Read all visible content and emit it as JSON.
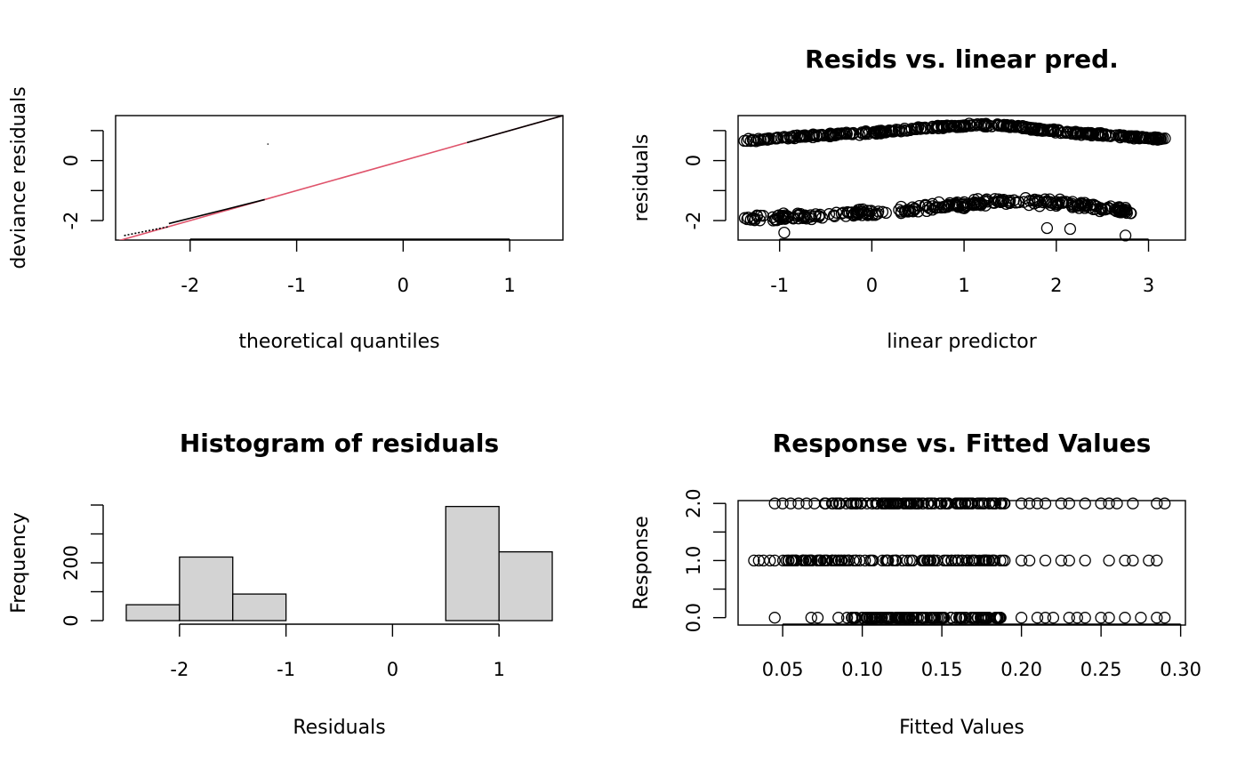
{
  "chart_data": [
    {
      "type": "scatter",
      "title": "",
      "xlabel": "theoretical quantiles",
      "ylabel": "deviance residuals",
      "xlim": [
        -2.7,
        1.5
      ],
      "ylim": [
        -2.65,
        1.5
      ],
      "x_ticks": [
        "-2",
        "-1",
        "0",
        "1"
      ],
      "x_tick_values": [
        -2,
        -1,
        0,
        1
      ],
      "y_ticks": [
        "-2",
        "0"
      ],
      "y_tick_values": [
        -2,
        0
      ],
      "y_minor_ticks": [
        -1,
        1
      ],
      "reference_line": {
        "intercept": 0,
        "slope": 1,
        "color": "#DF536B"
      },
      "points_color": "#000000",
      "segments": [
        {
          "x_from": -2.62,
          "x_to": -2.2,
          "y_from": -2.5,
          "y_to": -2.2
        },
        {
          "x_from": -2.2,
          "x_to": -1.3,
          "y_from": -2.1,
          "y_to": -1.3
        },
        {
          "x_from": 0.6,
          "x_to": 1.5,
          "y_from": 0.6,
          "y_to": 1.5
        }
      ],
      "outlier": {
        "x": -1.27,
        "y": 0.55
      }
    },
    {
      "type": "scatter",
      "title": "Resids vs. linear pred.",
      "xlabel": "linear predictor",
      "ylabel": "residuals",
      "xlim": [
        -1.45,
        3.4
      ],
      "ylim": [
        -2.65,
        1.5
      ],
      "x_ticks": [
        "-1",
        "0",
        "1",
        "2",
        "3"
      ],
      "x_tick_values": [
        -1,
        0,
        1,
        2,
        3
      ],
      "y_ticks": [
        "-2",
        "0"
      ],
      "y_tick_values": [
        -2,
        0
      ],
      "y_minor_ticks": [
        -1,
        1
      ],
      "upper_band": [
        [
          -1.4,
          0.68
        ],
        [
          -1.2,
          0.7
        ],
        [
          -1.0,
          0.76
        ],
        [
          -0.8,
          0.8
        ],
        [
          -0.5,
          0.85
        ],
        [
          -0.2,
          0.9
        ],
        [
          0.0,
          0.93
        ],
        [
          0.3,
          1.0
        ],
        [
          0.6,
          1.1
        ],
        [
          0.9,
          1.15
        ],
        [
          1.2,
          1.2
        ],
        [
          1.5,
          1.15
        ],
        [
          1.8,
          1.05
        ],
        [
          2.1,
          0.95
        ],
        [
          2.4,
          0.88
        ],
        [
          2.7,
          0.82
        ],
        [
          3.0,
          0.75
        ],
        [
          3.2,
          0.7
        ]
      ],
      "lower_band": [
        [
          -1.4,
          -1.95
        ],
        [
          -1.2,
          -1.93
        ],
        [
          -1.0,
          -1.9
        ],
        [
          -0.7,
          -1.87
        ],
        [
          -0.4,
          -1.82
        ],
        [
          -0.1,
          -1.76
        ],
        [
          0.2,
          -1.7
        ],
        [
          0.5,
          -1.62
        ],
        [
          0.8,
          -1.52
        ],
        [
          1.1,
          -1.43
        ],
        [
          1.4,
          -1.38
        ],
        [
          1.7,
          -1.37
        ],
        [
          2.0,
          -1.42
        ],
        [
          2.3,
          -1.5
        ],
        [
          2.6,
          -1.6
        ],
        [
          2.8,
          -1.7
        ]
      ],
      "outliers": [
        [
          1.9,
          -2.25
        ],
        [
          2.15,
          -2.28
        ],
        [
          2.75,
          -2.5
        ],
        [
          -0.95,
          -2.4
        ]
      ],
      "marker": "open-circle"
    },
    {
      "type": "bar",
      "title": "Histogram of residuals",
      "xlabel": "Residuals",
      "ylabel": "Frequency",
      "bin_edges": [
        -2.5,
        -2.0,
        -1.5,
        -1.0,
        -0.5,
        0.0,
        0.5,
        1.0,
        1.5
      ],
      "values": [
        55,
        220,
        92,
        0,
        0,
        0,
        395,
        238
      ],
      "xlim": [
        -2.6,
        1.6
      ],
      "ylim": [
        0,
        400
      ],
      "x_ticks": [
        "-2",
        "-1",
        "0",
        "1"
      ],
      "x_tick_values": [
        -2,
        -1,
        0,
        1
      ],
      "y_ticks": [
        "0",
        "200"
      ],
      "y_tick_values": [
        0,
        200
      ],
      "y_minor_ticks": [
        100,
        300,
        400
      ],
      "bar_color": "#D3D3D3"
    },
    {
      "type": "scatter",
      "title": "Response vs. Fitted Values",
      "xlabel": "Fitted Values",
      "ylabel": "Response",
      "xlim": [
        0.022,
        0.303
      ],
      "ylim": [
        -0.13,
        2.05
      ],
      "x_ticks": [
        "0.05",
        "0.10",
        "0.15",
        "0.20",
        "0.25",
        "0.30"
      ],
      "x_tick_values": [
        0.05,
        0.1,
        0.15,
        0.2,
        0.25,
        0.3
      ],
      "y_ticks": [
        "0.0",
        "1.0",
        "2.0"
      ],
      "y_tick_values": [
        0,
        1,
        2
      ],
      "y_minor_ticks": [
        0.5,
        1.5
      ],
      "rows": [
        {
          "y": 2,
          "dense_from": 0.075,
          "dense_to": 0.19,
          "scatter_x": [
            0.045,
            0.05,
            0.055,
            0.06,
            0.065,
            0.07,
            0.2,
            0.205,
            0.21,
            0.215,
            0.225,
            0.23,
            0.24,
            0.25,
            0.255,
            0.26,
            0.27,
            0.285,
            0.29
          ]
        },
        {
          "y": 1,
          "dense_from": 0.05,
          "dense_to": 0.19,
          "scatter_x": [
            0.032,
            0.035,
            0.038,
            0.042,
            0.045,
            0.2,
            0.205,
            0.215,
            0.225,
            0.23,
            0.24,
            0.255,
            0.265,
            0.27,
            0.28,
            0.285
          ]
        },
        {
          "y": 0,
          "dense_from": 0.09,
          "dense_to": 0.19,
          "scatter_x": [
            0.045,
            0.068,
            0.072,
            0.085,
            0.2,
            0.21,
            0.215,
            0.22,
            0.23,
            0.235,
            0.24,
            0.25,
            0.255,
            0.265,
            0.275,
            0.285,
            0.29
          ]
        }
      ],
      "marker": "open-circle"
    }
  ]
}
